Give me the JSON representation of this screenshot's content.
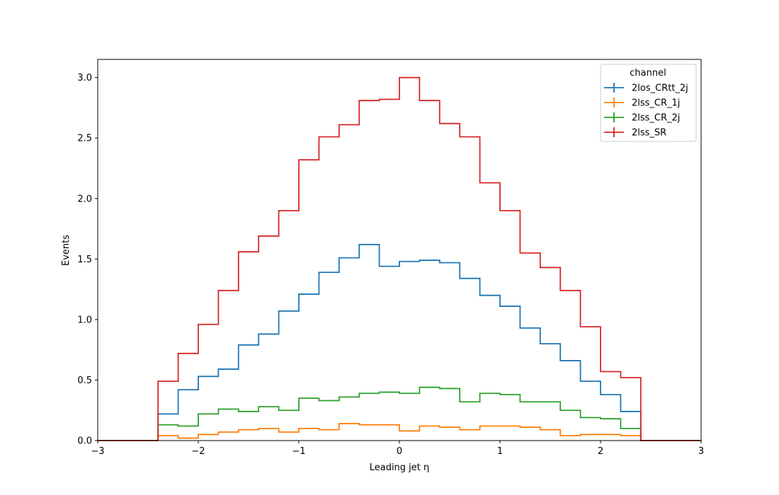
{
  "chart_data": {
    "type": "line",
    "drawstyle": "histogram-step",
    "xlabel": "Leading jet  η",
    "ylabel": "Events",
    "xlim": [
      -3,
      3
    ],
    "ylim": [
      0,
      3.15
    ],
    "x_ticks": [
      -3,
      -2,
      -1,
      0,
      1,
      2,
      3
    ],
    "x_tick_labels": [
      "−3",
      "−2",
      "−1",
      "0",
      "1",
      "2",
      "3"
    ],
    "y_ticks": [
      0,
      0.5,
      1,
      1.5,
      2,
      2.5,
      3
    ],
    "y_tick_labels": [
      "0.0",
      "0.5",
      "1.0",
      "1.5",
      "2.0",
      "2.5",
      "3.0"
    ],
    "grid": false,
    "legend": {
      "title": "channel",
      "placement": "top-right"
    },
    "bin_edges": [
      -2.4,
      -2.2,
      -2.0,
      -1.8,
      -1.6,
      -1.4,
      -1.2,
      -1.0,
      -0.8,
      -0.6,
      -0.4,
      -0.2,
      0.0,
      0.2,
      0.4,
      0.6,
      0.8,
      1.0,
      1.2,
      1.4,
      1.6,
      1.8,
      2.0,
      2.2,
      2.4
    ],
    "series": [
      {
        "name": "2los_CRtt_2j",
        "color": "#1f77b4",
        "values": [
          0.22,
          0.42,
          0.53,
          0.59,
          0.79,
          0.88,
          1.07,
          1.21,
          1.39,
          1.51,
          1.62,
          1.44,
          1.48,
          1.49,
          1.47,
          1.34,
          1.2,
          1.11,
          0.93,
          0.8,
          0.66,
          0.49,
          0.38,
          0.24
        ]
      },
      {
        "name": "2lss_CR_1j",
        "color": "#ff7f0e",
        "values": [
          0.04,
          0.02,
          0.05,
          0.07,
          0.09,
          0.1,
          0.07,
          0.1,
          0.09,
          0.14,
          0.13,
          0.13,
          0.08,
          0.12,
          0.11,
          0.09,
          0.12,
          0.12,
          0.11,
          0.09,
          0.04,
          0.05,
          0.05,
          0.04
        ]
      },
      {
        "name": "2lss_CR_2j",
        "color": "#2ca02c",
        "values": [
          0.13,
          0.12,
          0.22,
          0.26,
          0.24,
          0.28,
          0.25,
          0.35,
          0.33,
          0.36,
          0.39,
          0.4,
          0.39,
          0.44,
          0.43,
          0.32,
          0.39,
          0.38,
          0.32,
          0.32,
          0.25,
          0.19,
          0.18,
          0.1
        ]
      },
      {
        "name": "2lss_SR",
        "color": "#d62728",
        "values": [
          0.49,
          0.72,
          0.96,
          1.24,
          1.56,
          1.69,
          1.9,
          2.32,
          2.51,
          2.61,
          2.81,
          2.82,
          3.0,
          2.81,
          2.62,
          2.51,
          2.13,
          1.9,
          1.55,
          1.43,
          1.24,
          0.94,
          0.57,
          0.52
        ]
      }
    ]
  }
}
